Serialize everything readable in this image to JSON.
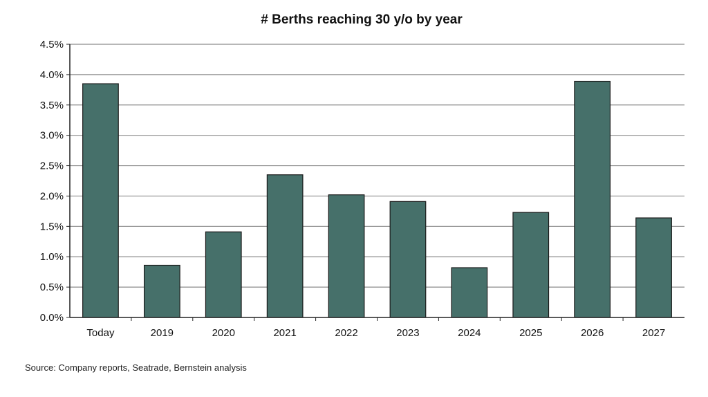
{
  "chart_data": {
    "type": "bar",
    "title": "# Berths reaching 30 y/o by year",
    "categories": [
      "Today",
      "2019",
      "2020",
      "2021",
      "2022",
      "2023",
      "2024",
      "2025",
      "2026",
      "2027"
    ],
    "values": [
      3.85,
      0.86,
      1.41,
      2.35,
      2.02,
      1.91,
      0.82,
      1.73,
      3.89,
      1.64
    ],
    "value_unit": "%",
    "ylim": [
      0,
      4.5
    ],
    "y_ticks": [
      "0.0%",
      "0.5%",
      "1.0%",
      "1.5%",
      "2.0%",
      "2.5%",
      "3.0%",
      "3.5%",
      "4.0%",
      "4.5%"
    ],
    "xlabel": "",
    "ylabel": "",
    "grid": "horizontal",
    "legend": "none",
    "bar_color": "#46706a",
    "source": "Source: Company reports, Seatrade, Bernstein analysis"
  }
}
